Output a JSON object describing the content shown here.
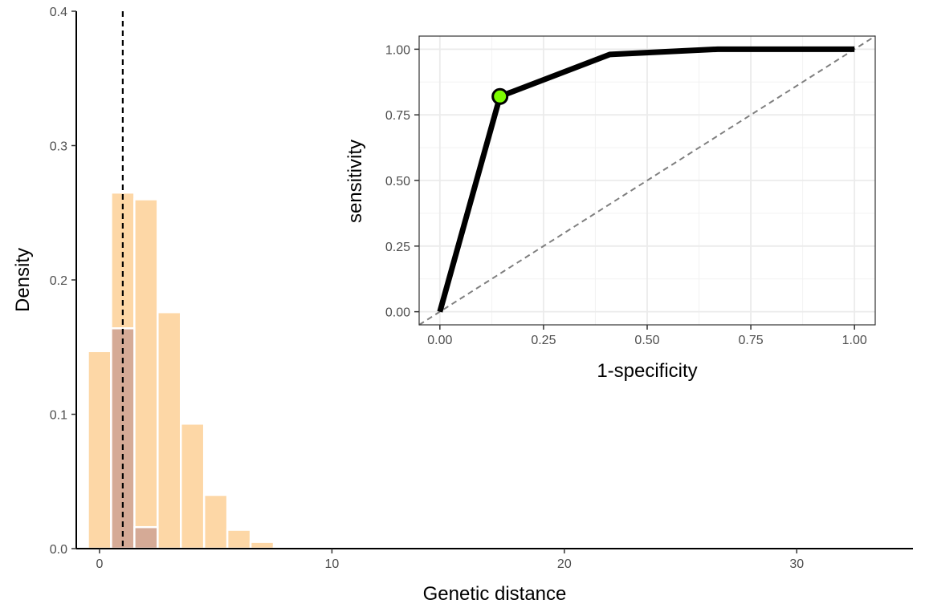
{
  "chart_data": [
    {
      "type": "bar",
      "xlabel": "Genetic distance",
      "ylabel": "Density",
      "xlim": [
        -1,
        35
      ],
      "ylim": [
        0,
        0.4
      ],
      "x_ticks": [
        0,
        10,
        20,
        30
      ],
      "y_ticks": [
        0.0,
        0.1,
        0.2,
        0.3,
        0.4
      ],
      "x_tick_labels": [
        "0",
        "10",
        "20",
        "30"
      ],
      "y_tick_labels": [
        "0.0",
        "0.1",
        "0.2",
        "0.3",
        "0.4"
      ],
      "bin_width": 1,
      "grid": false,
      "reference_line": {
        "type": "vline",
        "x": 1,
        "style": "dashed",
        "color": "#000000"
      },
      "series": [
        {
          "color": "#fdd7a6",
          "bins": [
            0,
            1,
            2,
            3,
            4,
            5,
            6,
            7,
            8
          ],
          "values": [
            0.147,
            0.265,
            0.26,
            0.176,
            0.093,
            0.04,
            0.014,
            0.005,
            0.001
          ]
        },
        {
          "color": "#d5aa96",
          "bins": [
            1,
            2
          ],
          "values": [
            0.164,
            0.016
          ]
        }
      ]
    },
    {
      "type": "line",
      "xlabel": "1-specificity",
      "ylabel": "sensitivity",
      "xlim": [
        -0.05,
        1.05
      ],
      "ylim": [
        -0.05,
        1.05
      ],
      "x_ticks": [
        0,
        0.25,
        0.5,
        0.75,
        1
      ],
      "y_ticks": [
        0,
        0.25,
        0.5,
        0.75,
        1
      ],
      "x_tick_labels": [
        "0.00",
        "0.25",
        "0.50",
        "0.75",
        "1.00"
      ],
      "y_tick_labels": [
        "0.00",
        "0.25",
        "0.50",
        "0.75",
        "1.00"
      ],
      "grid": true,
      "series": [
        {
          "color": "#000000",
          "x": [
            0,
            0.145,
            0.41,
            0.67,
            1.0
          ],
          "y": [
            0,
            0.82,
            0.98,
            1.0,
            1.0
          ]
        }
      ],
      "reference_line": {
        "type": "diagonal",
        "from": [
          -0.05,
          -0.05
        ],
        "to": [
          1.05,
          1.05
        ],
        "style": "dashed",
        "color": "#7f7f7f"
      },
      "highlight_point": {
        "x": 0.145,
        "y": 0.82,
        "color": "#7cfc00"
      }
    }
  ]
}
